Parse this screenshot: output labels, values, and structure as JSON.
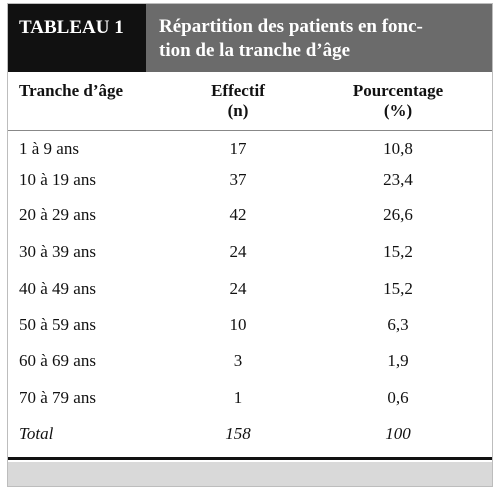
{
  "header": {
    "label": "TABLEAU 1",
    "title_lines": [
      "Répartition des patients en fonc-",
      "tion de la tranche d’âge"
    ]
  },
  "table": {
    "columns": [
      [
        "Tranche d’âge"
      ],
      [
        "Effectif",
        "(n)"
      ],
      [
        "Pourcentage",
        "(%)"
      ]
    ],
    "rows": [
      [
        "1 à 9 ans",
        "17",
        "10,8"
      ],
      [
        "10 à 19 ans",
        "37",
        "23,4"
      ],
      [
        "20 à 29 ans",
        "42",
        "26,6"
      ],
      [
        "30 à 39 ans",
        "24",
        "15,2"
      ],
      [
        "40 à 49 ans",
        "24",
        "15,2"
      ],
      [
        "50 à 59 ans",
        "10",
        "6,3"
      ],
      [
        "60 à 69 ans",
        "3",
        "1,9"
      ],
      [
        "70 à 79 ans",
        "1",
        "0,6"
      ]
    ],
    "total": [
      "Total",
      "158",
      "100"
    ]
  }
}
